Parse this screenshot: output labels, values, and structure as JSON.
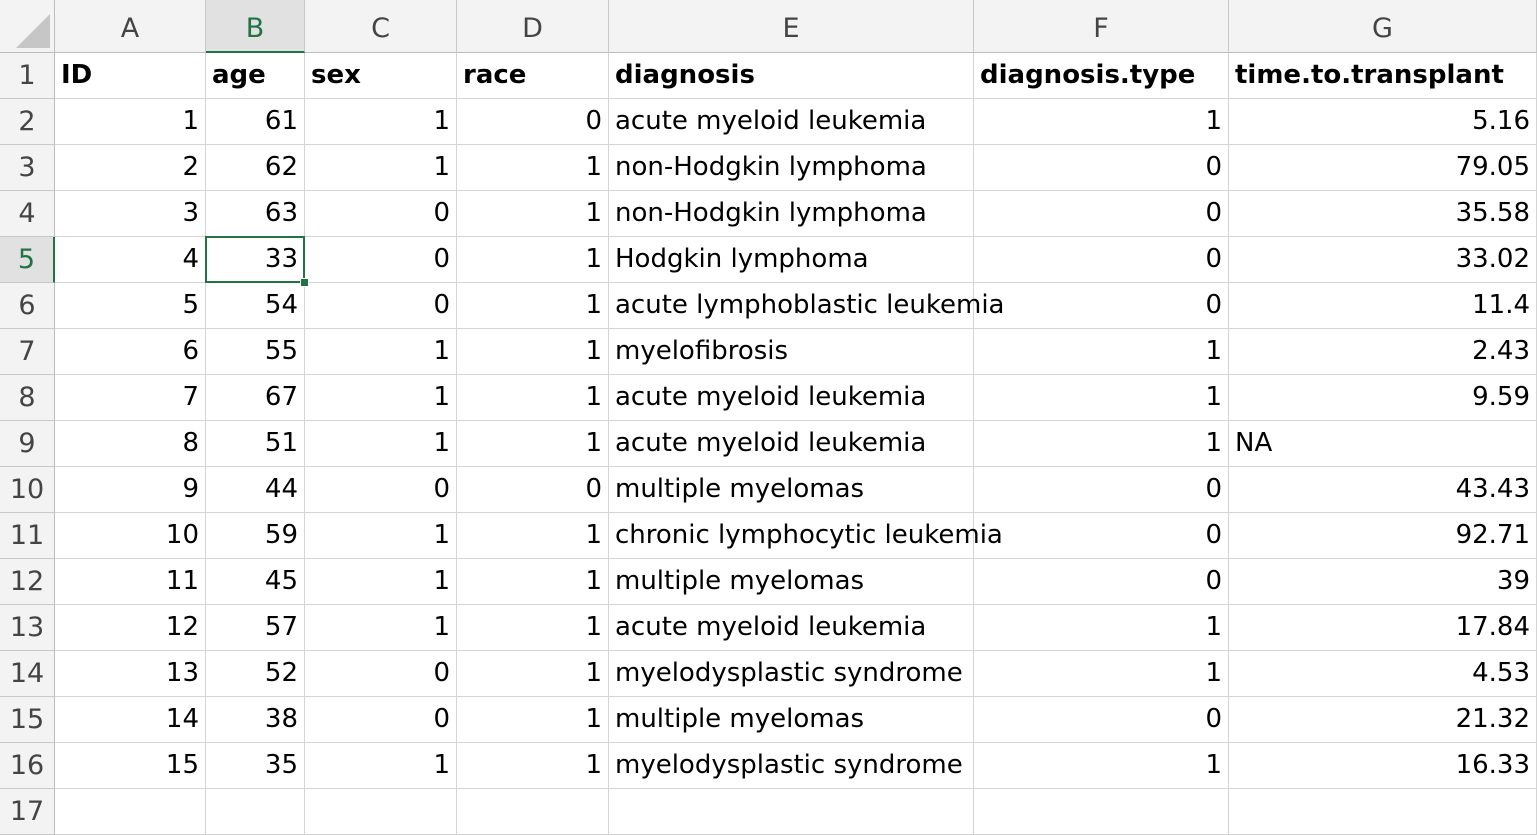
{
  "sheet": {
    "columns": [
      "A",
      "B",
      "C",
      "D",
      "E",
      "F",
      "G"
    ],
    "rows": [
      "1",
      "2",
      "3",
      "4",
      "5",
      "6",
      "7",
      "8",
      "9",
      "10",
      "11",
      "12",
      "13",
      "14",
      "15",
      "16",
      "17"
    ],
    "active_cell": "B5",
    "cells": [
      [
        "ID",
        "age",
        "sex",
        "race",
        "diagnosis",
        "diagnosis.type",
        "time.to.transplant"
      ],
      [
        "1",
        "61",
        "1",
        "0",
        "acute myeloid leukemia",
        "1",
        "5.16"
      ],
      [
        "2",
        "62",
        "1",
        "1",
        "non-Hodgkin lymphoma",
        "0",
        "79.05"
      ],
      [
        "3",
        "63",
        "0",
        "1",
        "non-Hodgkin lymphoma",
        "0",
        "35.58"
      ],
      [
        "4",
        "33",
        "0",
        "1",
        "Hodgkin lymphoma",
        "0",
        "33.02"
      ],
      [
        "5",
        "54",
        "0",
        "1",
        "acute lymphoblastic leukemia",
        "0",
        "11.4"
      ],
      [
        "6",
        "55",
        "1",
        "1",
        "myelofibrosis",
        "1",
        "2.43"
      ],
      [
        "7",
        "67",
        "1",
        "1",
        "acute myeloid leukemia",
        "1",
        "9.59"
      ],
      [
        "8",
        "51",
        "1",
        "1",
        "acute myeloid leukemia",
        "1",
        "NA"
      ],
      [
        "9",
        "44",
        "0",
        "0",
        "multiple myelomas",
        "0",
        "43.43"
      ],
      [
        "10",
        "59",
        "1",
        "1",
        "chronic lymphocytic leukemia",
        "0",
        "92.71"
      ],
      [
        "11",
        "45",
        "1",
        "1",
        "multiple myelomas",
        "0",
        "39"
      ],
      [
        "12",
        "57",
        "1",
        "1",
        "acute myeloid leukemia",
        "1",
        "17.84"
      ],
      [
        "13",
        "52",
        "0",
        "1",
        "myelodysplastic syndrome",
        "1",
        "4.53"
      ],
      [
        "14",
        "38",
        "0",
        "1",
        "multiple myelomas",
        "0",
        "21.32"
      ],
      [
        "15",
        "35",
        "1",
        "1",
        "myelodysplastic syndrome",
        "1",
        "16.33"
      ],
      [
        "",
        "",
        "",
        "",
        "",
        "",
        ""
      ]
    ]
  }
}
